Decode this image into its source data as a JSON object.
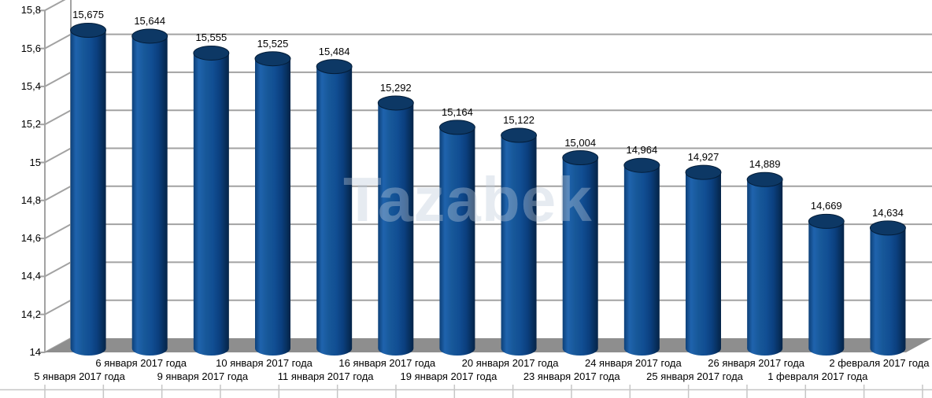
{
  "chart_data": {
    "type": "bar",
    "style": "3d-cylinder",
    "title": "",
    "categories": [
      "5 января 2017 года",
      "6 января 2017 года",
      "9 января 2017 года",
      "10 января 2017 года",
      "11 января 2017 года",
      "16 января 2017 года",
      "19 января 2017 года",
      "20 января 2017 года",
      "23 января 2017 года",
      "24 января 2017 года",
      "25 января 2017 года",
      "26 января 2017 года",
      "1 февраля 2017 года",
      "2 февраля 2017 года"
    ],
    "values": [
      15.675,
      15.644,
      15.555,
      15.525,
      15.484,
      15.292,
      15.164,
      15.122,
      15.004,
      14.964,
      14.927,
      14.889,
      14.669,
      14.634
    ],
    "value_labels": [
      "15,675",
      "15,644",
      "15,555",
      "15,525",
      "15,484",
      "15,292",
      "15,164",
      "15,122",
      "15,004",
      "14,964",
      "14,927",
      "14,889",
      "14,669",
      "14,634"
    ],
    "y_ticks": [
      15.8,
      15.6,
      15.4,
      15.2,
      15.0,
      14.8,
      14.6,
      14.4,
      14.2,
      14.0
    ],
    "y_tick_labels": [
      "15,8",
      "15,6",
      "15,4",
      "15,2",
      "15",
      "14,8",
      "14,6",
      "14,4",
      "14,2",
      "14"
    ],
    "ylim": [
      14,
      15.8
    ],
    "grid": true,
    "legend": null,
    "watermark": "Tazabek",
    "colors": {
      "bar_light": "#1f63ad",
      "bar_main": "#114e93",
      "bar_dark": "#052448",
      "bar_top": "#0d3865",
      "floor": "#8e8e8e",
      "gridline": "#a2a2a2",
      "ruler": "#c6c6c6",
      "label_text": "#000000",
      "watermark_color": "rgba(188,202,218,0.38)",
      "background": "#ffffff"
    }
  }
}
